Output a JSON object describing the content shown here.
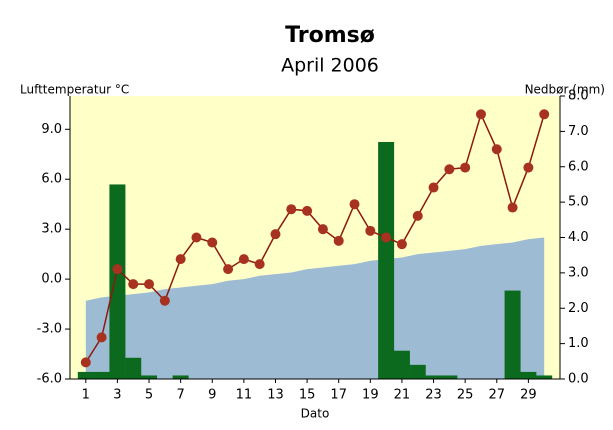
{
  "chart_data": {
    "type": "combo",
    "title": "Tromsø",
    "subtitle": "April 2006",
    "y_label": "Lufttemperatur °C",
    "y2_label": "Nedbør (mm)",
    "x_label": "Dato",
    "x": [
      1,
      2,
      3,
      4,
      5,
      6,
      7,
      8,
      9,
      10,
      11,
      12,
      13,
      14,
      15,
      16,
      17,
      18,
      19,
      20,
      21,
      22,
      23,
      24,
      25,
      26,
      27,
      28,
      29,
      30
    ],
    "xlim": [
      0,
      31
    ],
    "xticks": [
      1,
      3,
      5,
      7,
      9,
      11,
      13,
      15,
      17,
      19,
      21,
      23,
      25,
      27,
      29
    ],
    "ylim": [
      -6,
      11
    ],
    "yticks": [
      {
        "value": -6,
        "label": "-6.0"
      },
      {
        "value": -3,
        "label": "-3.0"
      },
      {
        "value": 0,
        "label": "0.0"
      },
      {
        "value": 3,
        "label": "3.0"
      },
      {
        "value": 6,
        "label": "6.0"
      },
      {
        "value": 9,
        "label": "9.0"
      }
    ],
    "y2lim": [
      0,
      8
    ],
    "y2ticks": [
      {
        "value": 0,
        "label": "0.0"
      },
      {
        "value": 1,
        "label": "1.0"
      },
      {
        "value": 2,
        "label": "2.0"
      },
      {
        "value": 3,
        "label": "3.0"
      },
      {
        "value": 4,
        "label": "4.0"
      },
      {
        "value": 5,
        "label": "5.0"
      },
      {
        "value": 6,
        "label": "6.0"
      },
      {
        "value": 7,
        "label": "7.0"
      },
      {
        "value": 8,
        "label": "8.0"
      }
    ],
    "background": "#ffffc8",
    "series": [
      {
        "type": "area",
        "axis": "y",
        "color": "#9dbcd4",
        "values": [
          -1.3,
          -1.1,
          -1.0,
          -0.9,
          -0.8,
          -0.6,
          -0.5,
          -0.4,
          -0.3,
          -0.1,
          0.0,
          0.2,
          0.3,
          0.4,
          0.6,
          0.7,
          0.8,
          0.9,
          1.1,
          1.2,
          1.3,
          1.5,
          1.6,
          1.7,
          1.8,
          2.0,
          2.1,
          2.2,
          2.4,
          2.5
        ]
      },
      {
        "type": "bar",
        "axis": "y2",
        "color": "#0b6a1e",
        "values": [
          0.2,
          0.2,
          5.5,
          0.6,
          0.1,
          0,
          0.1,
          0,
          0,
          0,
          0,
          0,
          0,
          0,
          0,
          0,
          0,
          0,
          0,
          6.7,
          0.8,
          0.4,
          0.1,
          0.1,
          0,
          0,
          0,
          2.5,
          0.2,
          0.1
        ]
      },
      {
        "type": "line",
        "axis": "y",
        "color": "#8b1a10",
        "values": [
          -5.0,
          -3.5,
          0.6,
          -0.3,
          -0.3,
          -1.3,
          1.2,
          2.5,
          2.2,
          0.6,
          1.2,
          0.9,
          2.7,
          4.2,
          4.1,
          3.0,
          2.3,
          4.5,
          2.9,
          2.5,
          2.1,
          3.8,
          5.5,
          6.6,
          6.7,
          9.9,
          7.8,
          4.3,
          6.7,
          9.9
        ]
      }
    ]
  }
}
